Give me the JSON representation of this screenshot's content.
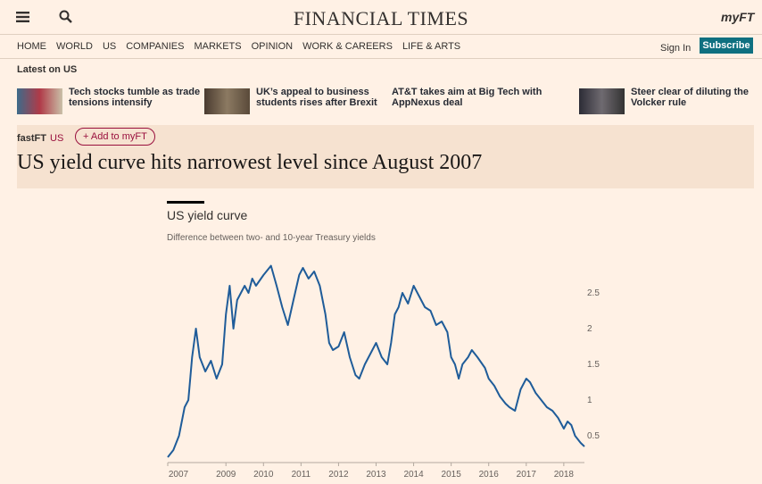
{
  "header": {
    "logo": "FINANCIAL TIMES",
    "myft": "myFT"
  },
  "nav": {
    "items": [
      "HOME",
      "WORLD",
      "US",
      "COMPANIES",
      "MARKETS",
      "OPINION",
      "WORK & CAREERS",
      "LIFE & ARTS"
    ],
    "sign_in": "Sign In",
    "subscribe": "Subscribe"
  },
  "latest": {
    "title": "Latest on US",
    "items": [
      "Tech stocks tumble as trade tensions intensify",
      "UK’s appeal to business students rises after Brexit",
      "AT&T takes aim at Big Tech with AppNexus deal",
      "Steer clear of diluting the Volcker rule"
    ]
  },
  "article": {
    "tag": "fastFT",
    "section": "US",
    "add_button": "+ Add to myFT",
    "headline": "US yield curve hits narrowest level since August 2007"
  },
  "chart_data": {
    "type": "line",
    "title": "US yield curve",
    "subtitle": "Difference between two- and 10-year Treasury yields",
    "color": "#1f5c99",
    "x": [
      2007.45,
      2007.6,
      2007.75,
      2007.9,
      2008.0,
      2008.1,
      2008.2,
      2008.3,
      2008.45,
      2008.6,
      2008.75,
      2008.9,
      2009.0,
      2009.1,
      2009.2,
      2009.3,
      2009.4,
      2009.5,
      2009.6,
      2009.7,
      2009.8,
      2010.0,
      2010.2,
      2010.35,
      2010.5,
      2010.65,
      2010.8,
      2010.95,
      2011.05,
      2011.2,
      2011.35,
      2011.5,
      2011.65,
      2011.75,
      2011.85,
      2012.0,
      2012.15,
      2012.3,
      2012.45,
      2012.55,
      2012.7,
      2012.85,
      2013.0,
      2013.15,
      2013.3,
      2013.4,
      2013.5,
      2013.6,
      2013.7,
      2013.85,
      2014.0,
      2014.15,
      2014.3,
      2014.45,
      2014.6,
      2014.75,
      2014.9,
      2015.0,
      2015.1,
      2015.2,
      2015.3,
      2015.45,
      2015.55,
      2015.7,
      2015.9,
      2016.0,
      2016.15,
      2016.3,
      2016.45,
      2016.55,
      2016.7,
      2016.85,
      2017.0,
      2017.1,
      2017.25,
      2017.4,
      2017.55,
      2017.7,
      2017.85,
      2018.0,
      2018.1,
      2018.2,
      2018.3,
      2018.45,
      2018.55
    ],
    "values": [
      0.2,
      0.3,
      0.5,
      0.9,
      1.0,
      1.6,
      2.0,
      1.6,
      1.4,
      1.55,
      1.3,
      1.5,
      2.2,
      2.6,
      2.0,
      2.4,
      2.5,
      2.6,
      2.5,
      2.7,
      2.6,
      2.75,
      2.88,
      2.6,
      2.3,
      2.05,
      2.4,
      2.75,
      2.85,
      2.7,
      2.8,
      2.6,
      2.2,
      1.8,
      1.7,
      1.75,
      1.95,
      1.6,
      1.35,
      1.3,
      1.5,
      1.65,
      1.8,
      1.6,
      1.5,
      1.8,
      2.2,
      2.3,
      2.5,
      2.35,
      2.6,
      2.45,
      2.3,
      2.25,
      2.05,
      2.1,
      1.95,
      1.6,
      1.5,
      1.3,
      1.5,
      1.6,
      1.7,
      1.6,
      1.45,
      1.3,
      1.2,
      1.05,
      0.95,
      0.9,
      0.85,
      1.15,
      1.3,
      1.25,
      1.1,
      1.0,
      0.9,
      0.85,
      0.75,
      0.6,
      0.7,
      0.65,
      0.5,
      0.4,
      0.35
    ],
    "xlim": [
      2007.45,
      2018.55
    ],
    "xticks": [
      2007,
      2009,
      2010,
      2011,
      2012,
      2013,
      2014,
      2015,
      2016,
      2017,
      2018
    ],
    "ylim": [
      0.15,
      2.9
    ],
    "yticks": [
      0.5,
      1,
      1.5,
      2,
      2.5
    ],
    "grid": false
  }
}
